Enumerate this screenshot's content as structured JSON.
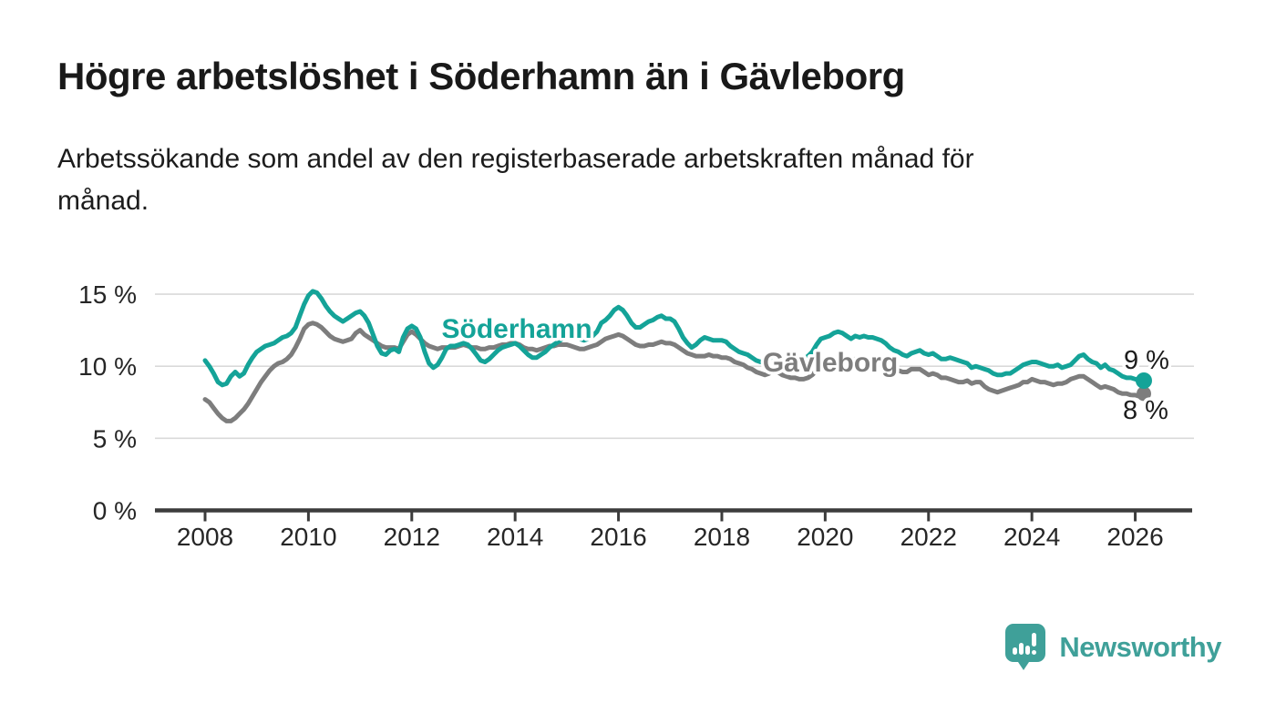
{
  "header": {
    "title": "Högre arbetslöshet i Söderhamn än i Gävleborg",
    "subtitle": "Arbetssökande som andel av den registerbaserade arbetskraften månad för månad.",
    "subtitle_lines": [
      "Arbetssökande som andel av den registerbaserade arbetskraften månad för",
      "månad."
    ]
  },
  "footer": {
    "logo_text": "Newsworthy",
    "logo_icon": "newsworthy-speech-bubble-bar-chart-icon",
    "logo_color": "#3fa099"
  },
  "chart_data": {
    "type": "line",
    "x_unit": "month",
    "x_start": "2008-01",
    "x_end": "2026-03",
    "x_tick_labels": [
      "2008",
      "2010",
      "2012",
      "2014",
      "2016",
      "2018",
      "2020",
      "2022",
      "2024",
      "2026"
    ],
    "y_ticks": [
      {
        "value": 0,
        "label": "0 %"
      },
      {
        "value": 5,
        "label": "5 %"
      },
      {
        "value": 10,
        "label": "10 %"
      },
      {
        "value": 15,
        "label": "15 %"
      }
    ],
    "ylim": [
      0,
      16.5
    ],
    "grid": "horizontal",
    "legend_position": "inline-labels",
    "colors": {
      "soderhamn": "#14a398",
      "gavleborg": "#7d7d7d",
      "grid": "#d9d9d9",
      "axis": "#3c3c3c",
      "text": "#262626"
    },
    "series": [
      {
        "name": "Gävleborg",
        "color": "#7d7d7d",
        "end_label": "8 %",
        "end_value": 8.1,
        "values": [
          7.7,
          7.5,
          7.1,
          6.7,
          6.4,
          6.2,
          6.2,
          6.4,
          6.7,
          7.0,
          7.4,
          7.9,
          8.4,
          8.9,
          9.3,
          9.7,
          10.0,
          10.2,
          10.3,
          10.5,
          10.8,
          11.3,
          11.9,
          12.6,
          12.9,
          13.0,
          12.9,
          12.7,
          12.4,
          12.1,
          11.9,
          11.8,
          11.7,
          11.8,
          11.9,
          12.3,
          12.5,
          12.2,
          12.0,
          11.8,
          11.6,
          11.4,
          11.3,
          11.3,
          11.3,
          11.2,
          11.7,
          12.2,
          12.4,
          12.2,
          11.9,
          11.6,
          11.4,
          11.3,
          11.2,
          11.3,
          11.3,
          11.3,
          11.3,
          11.4,
          11.5,
          11.4,
          11.3,
          11.3,
          11.2,
          11.2,
          11.3,
          11.3,
          11.4,
          11.5,
          11.5,
          11.6,
          11.6,
          11.5,
          11.3,
          11.2,
          11.2,
          11.1,
          11.2,
          11.3,
          11.4,
          11.4,
          11.5,
          11.5,
          11.5,
          11.4,
          11.3,
          11.2,
          11.2,
          11.3,
          11.4,
          11.5,
          11.7,
          11.9,
          12.0,
          12.1,
          12.2,
          12.1,
          11.9,
          11.7,
          11.5,
          11.4,
          11.4,
          11.5,
          11.5,
          11.6,
          11.7,
          11.6,
          11.6,
          11.5,
          11.3,
          11.1,
          10.9,
          10.8,
          10.7,
          10.7,
          10.7,
          10.8,
          10.7,
          10.7,
          10.6,
          10.6,
          10.5,
          10.3,
          10.2,
          10.1,
          9.9,
          9.8,
          9.6,
          9.5,
          9.4,
          9.5,
          9.7,
          9.6,
          9.4,
          9.3,
          9.2,
          9.2,
          9.1,
          9.1,
          9.2,
          9.4,
          9.7,
          10.0,
          10.2,
          10.3,
          10.5,
          10.6,
          10.6,
          10.5,
          10.4,
          10.5,
          10.4,
          10.5,
          10.4,
          10.4,
          10.4,
          10.3,
          10.2,
          10.1,
          9.9,
          9.7,
          9.6,
          9.6,
          9.8,
          9.8,
          9.8,
          9.6,
          9.4,
          9.5,
          9.4,
          9.2,
          9.2,
          9.1,
          9.0,
          8.9,
          8.9,
          9.0,
          8.8,
          8.9,
          8.9,
          8.6,
          8.4,
          8.3,
          8.2,
          8.3,
          8.4,
          8.5,
          8.6,
          8.7,
          8.9,
          8.9,
          9.1,
          9.0,
          8.9,
          8.9,
          8.8,
          8.7,
          8.8,
          8.8,
          8.9,
          9.1,
          9.2,
          9.3,
          9.3,
          9.1,
          8.9,
          8.7,
          8.5,
          8.6,
          8.5,
          8.4,
          8.2,
          8.1,
          8.1,
          8.0,
          8.0,
          7.9,
          8.1
        ]
      },
      {
        "name": "Söderhamn",
        "color": "#14a398",
        "end_label": "9 %",
        "end_value": 9.0,
        "values": [
          10.4,
          10.0,
          9.5,
          8.9,
          8.7,
          8.8,
          9.3,
          9.6,
          9.3,
          9.5,
          10.1,
          10.6,
          11.0,
          11.2,
          11.4,
          11.5,
          11.6,
          11.8,
          12.0,
          12.1,
          12.3,
          12.7,
          13.5,
          14.3,
          14.9,
          15.2,
          15.1,
          14.7,
          14.2,
          13.8,
          13.5,
          13.3,
          13.1,
          13.3,
          13.5,
          13.7,
          13.8,
          13.5,
          13.0,
          12.2,
          11.4,
          10.9,
          10.8,
          11.1,
          11.2,
          11.0,
          12.0,
          12.6,
          12.8,
          12.6,
          12.0,
          11.0,
          10.2,
          9.9,
          10.1,
          10.6,
          11.2,
          11.4,
          11.4,
          11.5,
          11.6,
          11.5,
          11.2,
          10.8,
          10.4,
          10.3,
          10.5,
          10.8,
          11.1,
          11.3,
          11.4,
          11.5,
          11.6,
          11.4,
          11.1,
          10.8,
          10.6,
          10.6,
          10.8,
          11.0,
          11.3,
          11.5,
          11.7,
          11.9,
          12.0,
          12.1,
          12.0,
          11.9,
          11.8,
          11.9,
          12.1,
          12.4,
          13.0,
          13.2,
          13.5,
          13.9,
          14.1,
          13.9,
          13.5,
          13.0,
          12.7,
          12.7,
          12.9,
          13.1,
          13.2,
          13.4,
          13.5,
          13.3,
          13.3,
          13.1,
          12.6,
          12.0,
          11.6,
          11.3,
          11.5,
          11.8,
          12.0,
          11.9,
          11.8,
          11.8,
          11.8,
          11.7,
          11.4,
          11.2,
          11.0,
          10.9,
          10.8,
          10.6,
          10.4,
          10.3,
          10.4,
          10.6,
          10.6,
          10.5,
          10.4,
          10.3,
          10.2,
          10.3,
          10.4,
          10.5,
          10.7,
          11.0,
          11.5,
          11.9,
          12.0,
          12.1,
          12.3,
          12.4,
          12.3,
          12.1,
          11.9,
          12.1,
          12.0,
          12.1,
          12.0,
          12.0,
          11.9,
          11.8,
          11.6,
          11.3,
          11.1,
          11.0,
          10.8,
          10.7,
          10.9,
          11.0,
          11.1,
          10.9,
          10.8,
          10.9,
          10.7,
          10.5,
          10.5,
          10.6,
          10.5,
          10.4,
          10.3,
          10.2,
          9.9,
          10.0,
          9.9,
          9.8,
          9.7,
          9.5,
          9.4,
          9.4,
          9.5,
          9.5,
          9.7,
          9.9,
          10.1,
          10.2,
          10.3,
          10.3,
          10.2,
          10.1,
          10.0,
          10.0,
          10.1,
          9.9,
          10.0,
          10.1,
          10.4,
          10.7,
          10.8,
          10.5,
          10.3,
          10.2,
          9.9,
          10.1,
          9.8,
          9.7,
          9.5,
          9.3,
          9.2,
          9.2,
          9.1,
          9.0,
          9.0
        ]
      }
    ]
  }
}
